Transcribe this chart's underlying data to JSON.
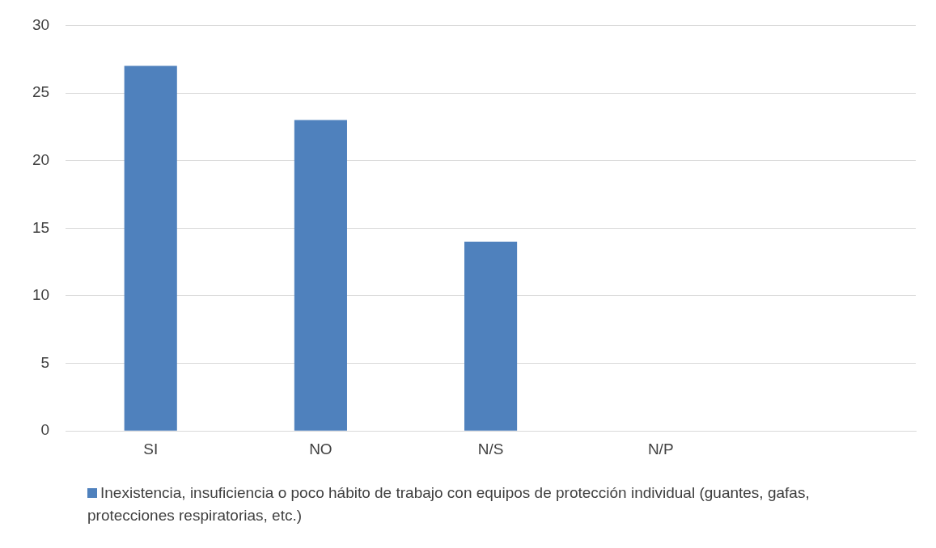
{
  "chart_data": {
    "type": "bar",
    "categories": [
      "SI",
      "NO",
      "N/S",
      "N/P",
      null
    ],
    "series": [
      {
        "name": "Inexistencia, insuficiencia o poco hábito de trabajo con equipos de protección individual (guantes, gafas, protecciones respiratorias, etc.)",
        "color": "#4f81bd",
        "values": [
          27,
          23,
          14,
          0,
          null
        ]
      }
    ],
    "ylim": [
      0,
      30
    ],
    "yticks": [
      0,
      5,
      10,
      15,
      20,
      25,
      30
    ],
    "grid": "y",
    "legend": "bottom"
  }
}
